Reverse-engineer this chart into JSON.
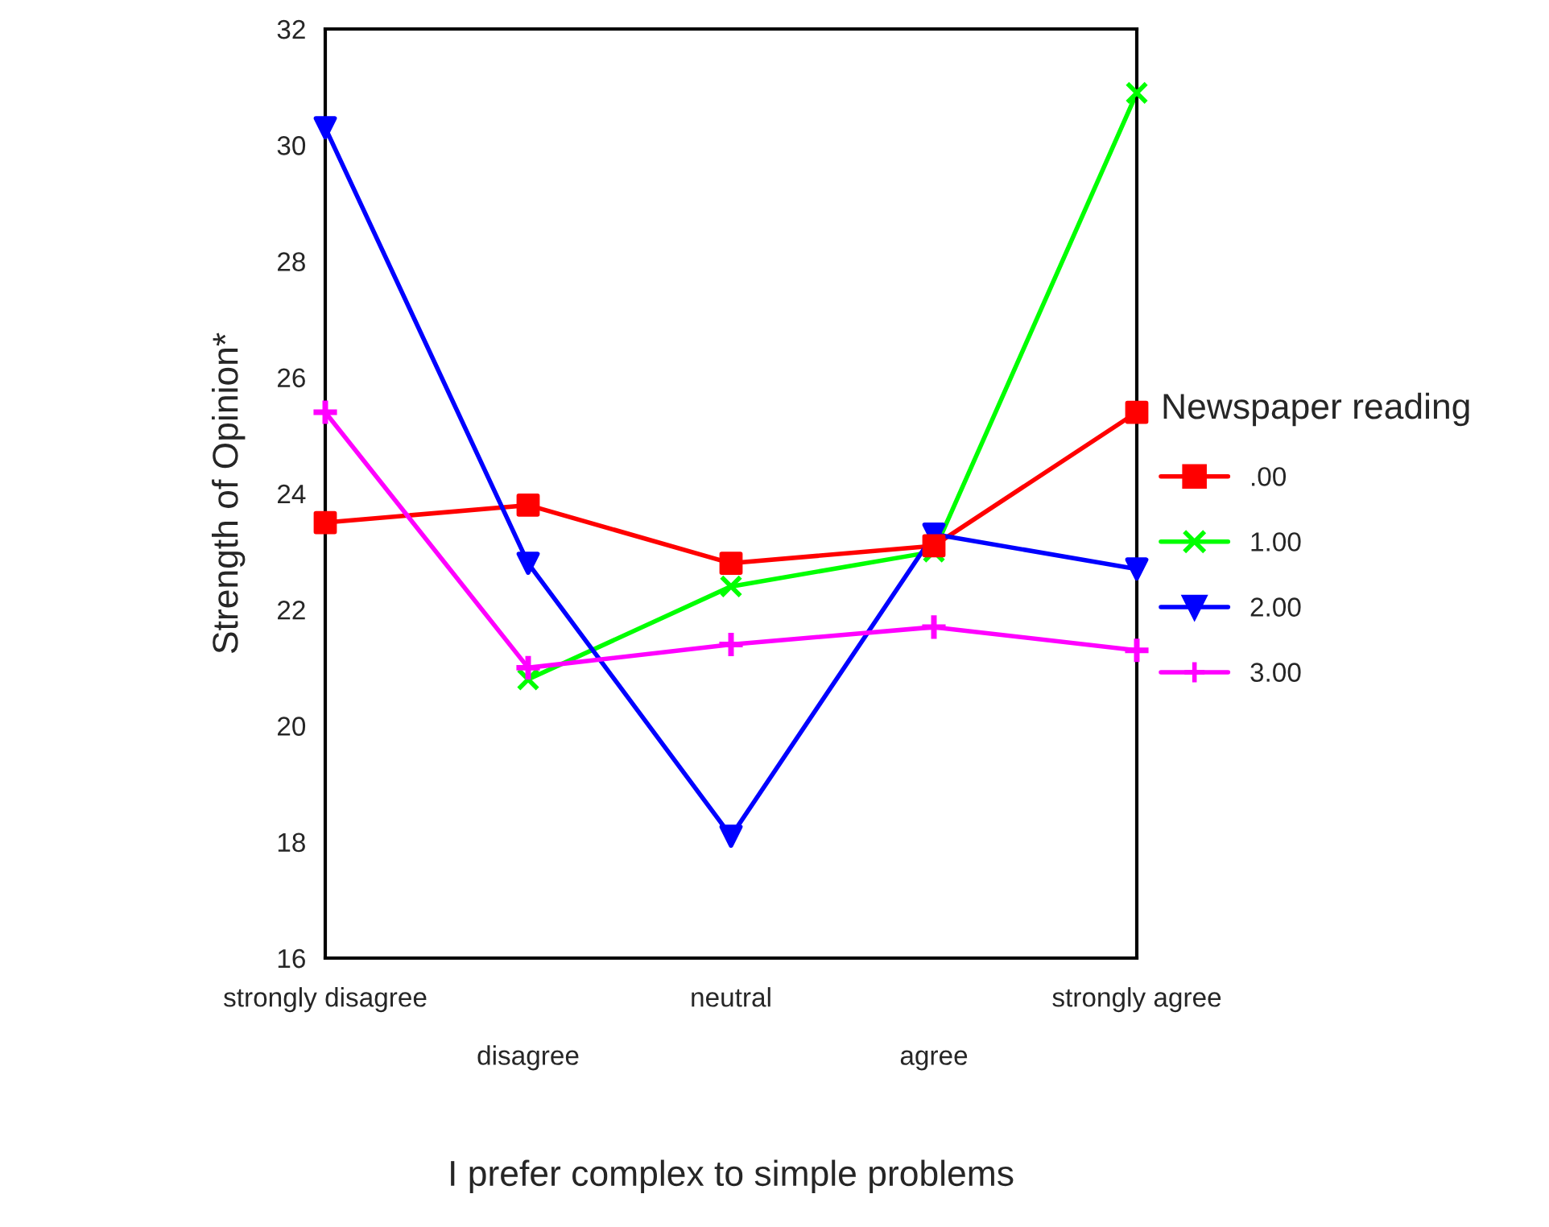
{
  "chart_data": {
    "type": "line",
    "xlabel": "I prefer complex to simple problems",
    "ylabel": "Strength of Opinion*",
    "legend_title": "Newspaper reading",
    "legend": "right",
    "categories": [
      "strongly disagree",
      "disagree",
      "neutral",
      "agree",
      "strongly agree"
    ],
    "ylim": [
      16,
      32
    ],
    "yticks": [
      16,
      18,
      20,
      22,
      24,
      26,
      28,
      30,
      32
    ],
    "series": [
      {
        "name": ".00",
        "color": "#ff0000",
        "marker": "square",
        "values": [
          23.5,
          23.8,
          22.8,
          23.1,
          25.4
        ]
      },
      {
        "name": "1.00",
        "color": "#00ff00",
        "marker": "cross",
        "values": [
          null,
          20.8,
          22.4,
          23.0,
          30.9
        ]
      },
      {
        "name": "2.00",
        "color": "#0000ff",
        "marker": "triangle",
        "values": [
          30.3,
          22.8,
          18.1,
          23.3,
          22.7
        ]
      },
      {
        "name": "3.00",
        "color": "#ff00ff",
        "marker": "plus",
        "values": [
          25.4,
          21.0,
          21.4,
          21.7,
          21.3
        ]
      }
    ]
  }
}
